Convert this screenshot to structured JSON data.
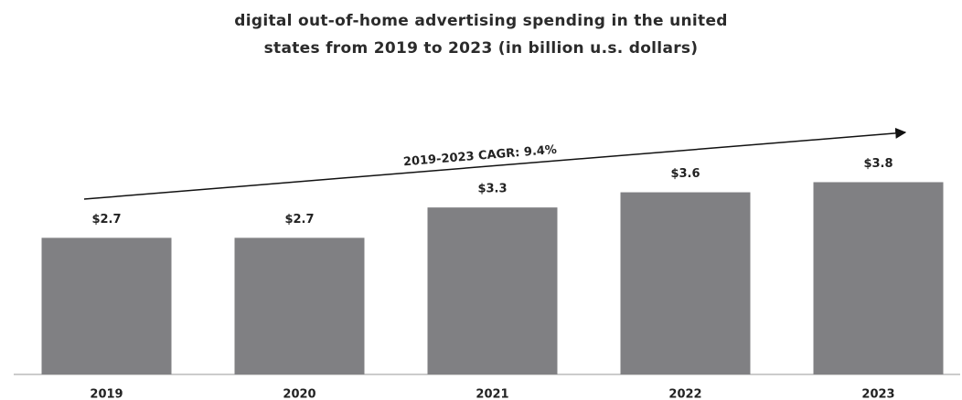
{
  "chart_data": {
    "type": "bar",
    "title": "digital out-of-home advertising spending in the united states from 2019 to 2023 (in billion u.s. dollars)",
    "categories": [
      "2019",
      "2020",
      "2021",
      "2022",
      "2023"
    ],
    "values": [
      2.7,
      2.7,
      3.3,
      3.6,
      3.8
    ],
    "value_labels": [
      "$2.7",
      "$2.7",
      "$3.3",
      "$3.6",
      "$3.8"
    ],
    "color": "#808083",
    "annotation": "2019-2023 CAGR: 9.4%"
  }
}
